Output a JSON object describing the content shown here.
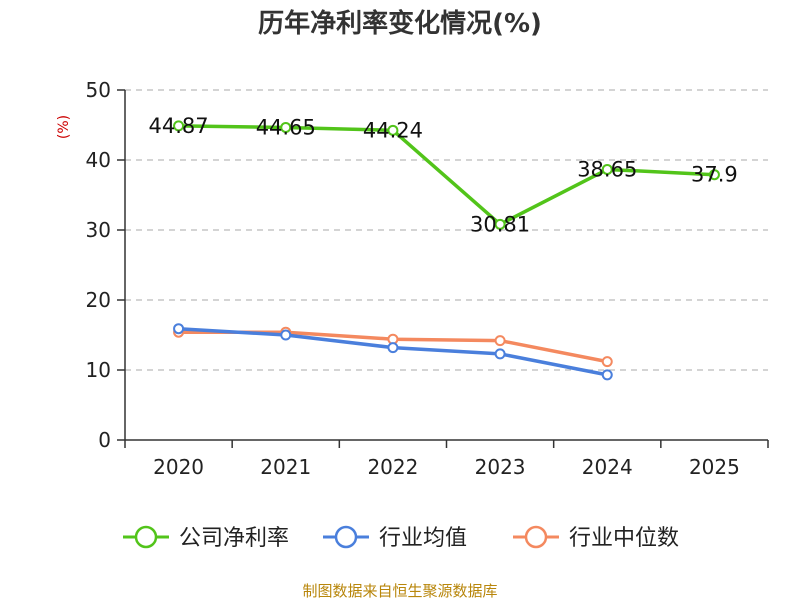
{
  "chart_data": {
    "type": "line",
    "title": "历年净利率变化情况(%)",
    "ylabel": "(%)",
    "xlabel": "",
    "ylim": [
      0,
      50
    ],
    "yticks": [
      0,
      10,
      20,
      30,
      40,
      50
    ],
    "categories": [
      "2020",
      "2021",
      "2022",
      "2023",
      "2024",
      "2025"
    ],
    "series": [
      {
        "name": "公司净利率",
        "color": "#52c41a",
        "values": [
          44.87,
          44.65,
          44.24,
          30.81,
          38.65,
          37.9
        ],
        "labels": [
          "44.87",
          "44.65",
          "44.24",
          "30.81",
          "38.65",
          "37.9"
        ]
      },
      {
        "name": "行业均值",
        "color": "#4a7fdc",
        "values": [
          15.9,
          15.0,
          13.2,
          12.3,
          9.3,
          null
        ]
      },
      {
        "name": "行业中位数",
        "color": "#f4895f",
        "values": [
          15.4,
          15.4,
          14.4,
          14.2,
          11.2,
          null
        ]
      }
    ],
    "grid": true,
    "legend": "bottom"
  },
  "source": "制图数据来自恒生聚源数据库"
}
